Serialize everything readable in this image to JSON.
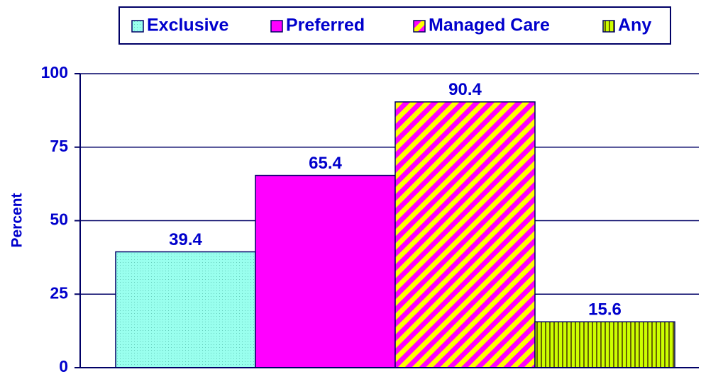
{
  "chart_data": {
    "type": "bar",
    "y_label": "Percent",
    "categories": [
      null
    ],
    "series": [
      {
        "name": "Exclusive",
        "color": "#99ffee",
        "values": [
          39.4
        ]
      },
      {
        "name": "Preferred",
        "color": "#ff00ff",
        "values": [
          65.4
        ]
      },
      {
        "name": "Managed Care",
        "color": "#ffff00",
        "values": [
          90.4
        ]
      },
      {
        "name": "Any",
        "color": "#ccff00",
        "values": [
          15.6
        ]
      }
    ],
    "ylim": [
      0,
      100
    ],
    "yticks": [
      0,
      25,
      50,
      75,
      100
    ],
    "grid": true,
    "legend": "top"
  }
}
